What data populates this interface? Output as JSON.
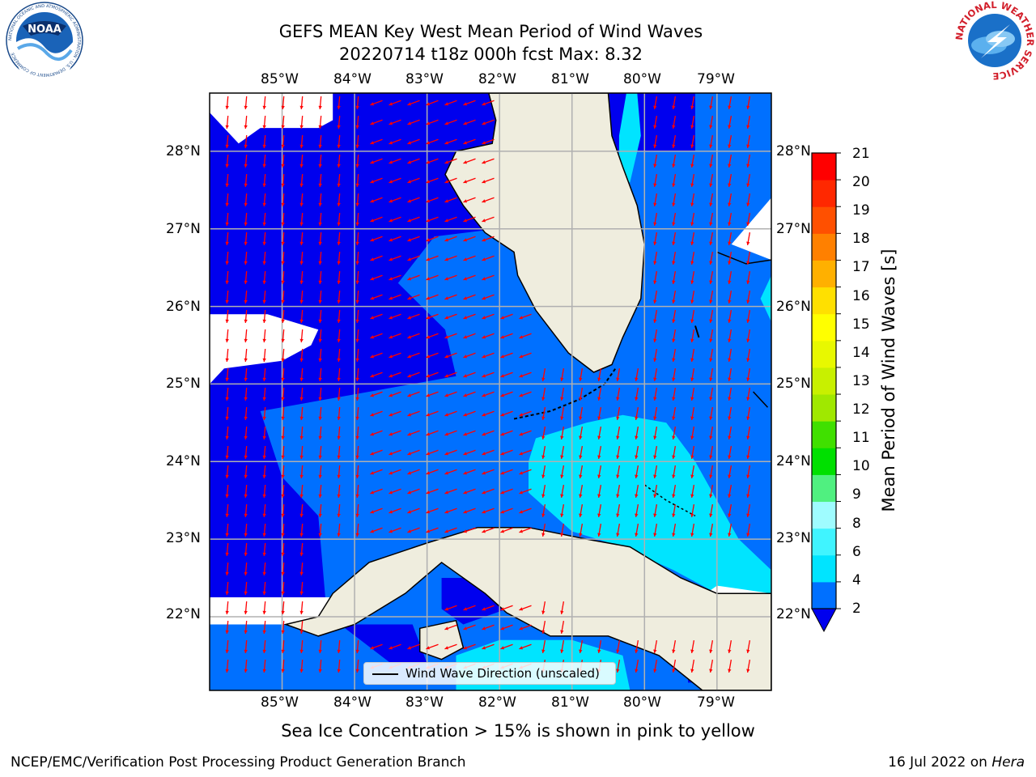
{
  "title": {
    "line1": "GEFS MEAN Key West Mean Period of Wind Waves",
    "line2": "20220714 t18z 000h fcst   Max: 8.32"
  },
  "map": {
    "lon_range": [
      -86.0,
      -78.25
    ],
    "lat_range": [
      21.05,
      28.75
    ],
    "lon_ticks": [
      "85°W",
      "84°W",
      "83°W",
      "82°W",
      "81°W",
      "80°W",
      "79°W"
    ],
    "lat_ticks": [
      "28°N",
      "27°N",
      "26°N",
      "25°N",
      "24°N",
      "23°N",
      "22°N"
    ],
    "land_color": "#efedde",
    "grid": true
  },
  "colorbar": {
    "label": "Mean Period of Wind Waves [s]",
    "ticks": [
      "21",
      "20",
      "19",
      "18",
      "17",
      "16",
      "15",
      "14",
      "13",
      "12",
      "11",
      "10",
      "9",
      "8",
      "6",
      "4",
      "2"
    ],
    "colors": [
      "#0070ff",
      "#00e4ff",
      "#40f4ff",
      "#9ffcff",
      "#50f080",
      "#00e000",
      "#40e000",
      "#a0e800",
      "#c8f000",
      "#e8f800",
      "#ffff00",
      "#ffe000",
      "#ffb000",
      "#ff8000",
      "#ff5000",
      "#ff2800",
      "#ff0000"
    ],
    "underflow_color": "#0000ee"
  },
  "legend": {
    "label": "Wind Wave Direction (unscaled)"
  },
  "logos": {
    "noaa": {
      "text": "NOAA",
      "ring": "NATIONAL OCEANIC AND ATMOSPHERIC ADMINISTRATION · U.S. DEPARTMENT OF COMMERCE"
    },
    "nws": {
      "ring": "NATIONAL WEATHER SERVICE"
    }
  },
  "notes": {
    "ice": "Sea Ice Concentration > 15% is shown in pink to yellow"
  },
  "footer": {
    "left": "NCEP/EMC/Verification Post Processing Product Generation Branch",
    "right_prefix": "16 Jul 2022 on ",
    "right_host": "Hera"
  }
}
